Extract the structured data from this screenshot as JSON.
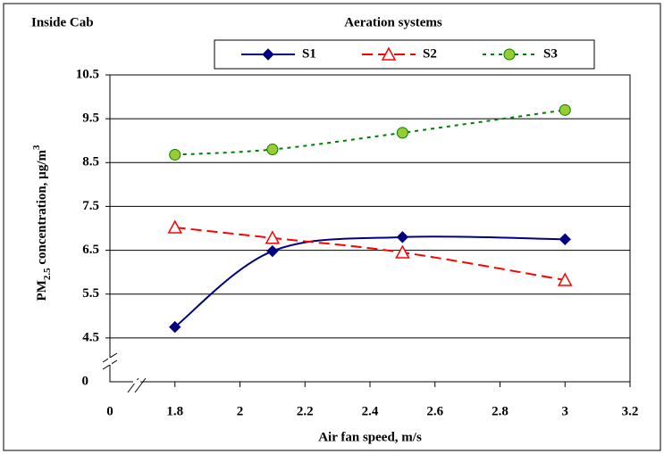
{
  "chart_data": {
    "type": "line",
    "title": "Aeration systems",
    "corner_label": "Inside Cab",
    "xlabel": "Air fan speed, m/s",
    "ylabel_parts": [
      "PM",
      "2.5",
      " concentration, µg/m",
      "3"
    ],
    "x": [
      1.8,
      2.1,
      2.5,
      3
    ],
    "series": [
      {
        "name": "S1",
        "color": "#000080",
        "marker": "diamond",
        "dash": "solid",
        "values": [
          4.75,
          6.48,
          6.8,
          6.75
        ]
      },
      {
        "name": "S2",
        "color": "#ff0000",
        "marker": "triangle",
        "dash": "dashed",
        "values": [
          7.02,
          6.78,
          6.45,
          5.82
        ]
      },
      {
        "name": "S3",
        "color": "#008000",
        "marker": "circle",
        "dash": "dotted",
        "values": [
          8.68,
          8.8,
          9.18,
          9.7
        ]
      }
    ],
    "xlim": [
      1.6,
      3.2
    ],
    "xticks": [
      1.8,
      2,
      2.2,
      2.4,
      2.6,
      2.8,
      3,
      3.2
    ],
    "ylim": [
      3.5,
      10.5
    ],
    "yticks": [
      4.5,
      5.5,
      6.5,
      7.5,
      8.5,
      9.5,
      10.5
    ],
    "x_origin_tick": 0,
    "y_origin_tick": 0,
    "grid": true
  }
}
